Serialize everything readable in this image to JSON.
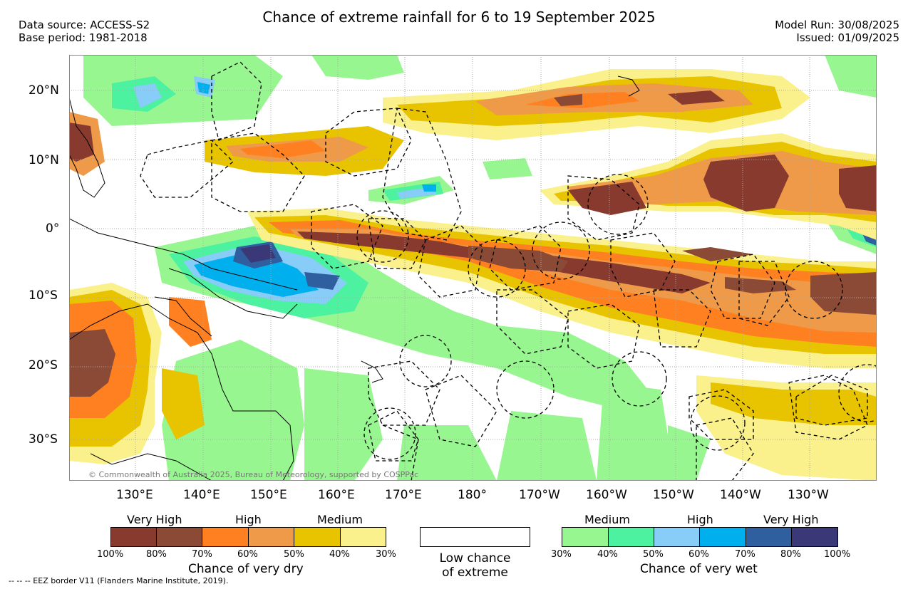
{
  "header": {
    "title": "Chance of extreme rainfall for 6 to 19 September 2025",
    "data_source": "Data source: ACCESS-S2",
    "base_period": "Base period: 1981-2018",
    "model_run": "Model Run: 30/08/2025",
    "issued": "Issued: 01/09/2025"
  },
  "map": {
    "lat_labels": [
      "20°N",
      "10°N",
      "0°",
      "10°S",
      "20°S",
      "30°S"
    ],
    "lon_labels": [
      "130°E",
      "140°E",
      "150°E",
      "160°E",
      "170°E",
      "180°",
      "170°W",
      "160°W",
      "150°W",
      "140°W",
      "130°W"
    ],
    "copyright": "© Commonwealth of Australia 2025, Bureau of Meteorology, supported by COSPPac",
    "colors": {
      "dry_very_high_dark": "#883a2e",
      "dry_very_high": "#8a4a35",
      "dry_high_dark": "#ff8020",
      "dry_high": "#ee9a48",
      "dry_medium_dark": "#e8c400",
      "dry_medium": "#fbf18c",
      "wet_medium": "#98f690",
      "wet_medium_dark": "#4cf2a0",
      "wet_high": "#88ccf8",
      "wet_high_dark": "#00b0ee",
      "wet_very_high": "#305fa0",
      "wet_very_high_dark": "#3b3878",
      "low_chance": "#ffffff"
    }
  },
  "legend": {
    "dry": {
      "categories": [
        "Very High",
        "High",
        "Medium"
      ],
      "ticks": [
        "100%",
        "80%",
        "70%",
        "60%",
        "50%",
        "40%",
        "30%"
      ],
      "caption": "Chance of very dry"
    },
    "neutral": {
      "caption_line1": "Low chance",
      "caption_line2": "of extreme"
    },
    "wet": {
      "categories": [
        "Medium",
        "High",
        "Very High"
      ],
      "ticks": [
        "30%",
        "40%",
        "50%",
        "60%",
        "70%",
        "80%",
        "100%"
      ],
      "caption": "Chance of very wet"
    }
  },
  "footer": {
    "eez_note": "--  --  -- EEZ border V11 (Flanders Marine Institute, 2019)."
  }
}
